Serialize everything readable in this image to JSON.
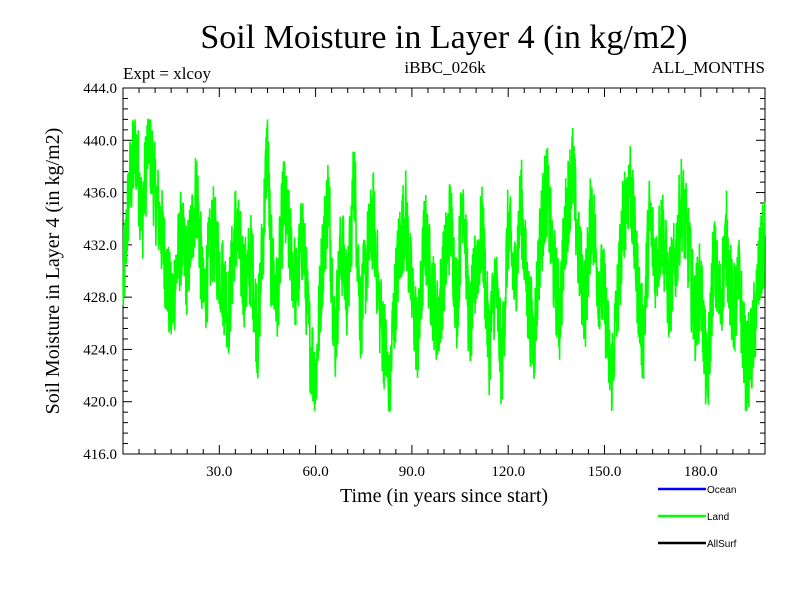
{
  "chart_data": {
    "type": "line",
    "title": "Soil Moisture in Layer 4 (in kg/m2)",
    "subtitle_left": "Expt = xlcoy",
    "subtitle_center": "iBBC_026k",
    "subtitle_right": "ALL_MONTHS",
    "xlabel": "Time (in years since start)",
    "ylabel": "Soil Moisture in Layer 4 (in kg/m2)",
    "xlim": [
      0,
      200
    ],
    "ylim": [
      416,
      444
    ],
    "x_ticks": [
      30,
      60,
      90,
      120,
      150,
      180
    ],
    "x_tick_labels": [
      "30.0",
      "60.0",
      "90.0",
      "120.0",
      "150.0",
      "180.0"
    ],
    "y_ticks": [
      416,
      420,
      424,
      428,
      432,
      436,
      440,
      444
    ],
    "y_tick_labels": [
      "416.0",
      "420.0",
      "424.0",
      "428.0",
      "432.0",
      "436.0",
      "440.0",
      "444.0"
    ],
    "legend": [
      "Ocean",
      "Land",
      "AllSurf"
    ],
    "legend_position": "bottom-right",
    "series": [
      {
        "name": "Ocean",
        "color": "#0000ff",
        "x": [],
        "values": []
      },
      {
        "name": "Land",
        "color": "#00ff00",
        "x": [
          0,
          2,
          4,
          6,
          8,
          10,
          12,
          15,
          18,
          20,
          23,
          25,
          28,
          30,
          33,
          35,
          38,
          40,
          42,
          44,
          45,
          46,
          48,
          50,
          52,
          54,
          56,
          58,
          60,
          62,
          64,
          66,
          68,
          70,
          72,
          74,
          76,
          78,
          80,
          82,
          83,
          84,
          86,
          88,
          90,
          92,
          94,
          96,
          98,
          100,
          102,
          104,
          106,
          108,
          110,
          112,
          114,
          116,
          118,
          120,
          122,
          124,
          126,
          128,
          130,
          132,
          134,
          136,
          138,
          140,
          142,
          144,
          146,
          148,
          150,
          152,
          154,
          156,
          158,
          160,
          162,
          164,
          166,
          168,
          170,
          172,
          174,
          176,
          178,
          180,
          182,
          184,
          186,
          188,
          190,
          192,
          194,
          196,
          198,
          200
        ],
        "values": [
          428.5,
          436.5,
          439.5,
          434.0,
          440.5,
          436.0,
          433.0,
          427.0,
          432.5,
          430.0,
          436.5,
          427.5,
          433.0,
          430.5,
          427.0,
          433.5,
          429.0,
          431.0,
          425.0,
          434.5,
          440.0,
          431.0,
          427.5,
          435.5,
          432.0,
          428.5,
          433.0,
          425.0,
          421.5,
          430.5,
          436.0,
          424.5,
          432.0,
          428.0,
          437.5,
          426.5,
          431.0,
          434.0,
          427.0,
          423.5,
          419.8,
          425.5,
          431.5,
          434.5,
          428.0,
          424.5,
          433.0,
          429.0,
          426.0,
          430.0,
          434.0,
          427.5,
          436.5,
          425.0,
          430.5,
          433.0,
          424.0,
          429.5,
          422.5,
          433.5,
          429.0,
          435.5,
          428.0,
          424.5,
          432.5,
          436.5,
          430.5,
          426.5,
          434.0,
          438.0,
          431.0,
          427.5,
          435.0,
          429.5,
          428.0,
          421.5,
          427.5,
          434.5,
          437.0,
          430.0,
          424.5,
          434.0,
          430.5,
          433.5,
          428.0,
          430.5,
          435.5,
          432.0,
          426.5,
          429.0,
          421.0,
          431.0,
          427.5,
          432.5,
          426.5,
          429.0,
          422.5,
          424.0,
          429.5,
          432.5
        ]
      },
      {
        "name": "AllSurf",
        "color": "#000000",
        "x": [],
        "values": []
      }
    ]
  }
}
